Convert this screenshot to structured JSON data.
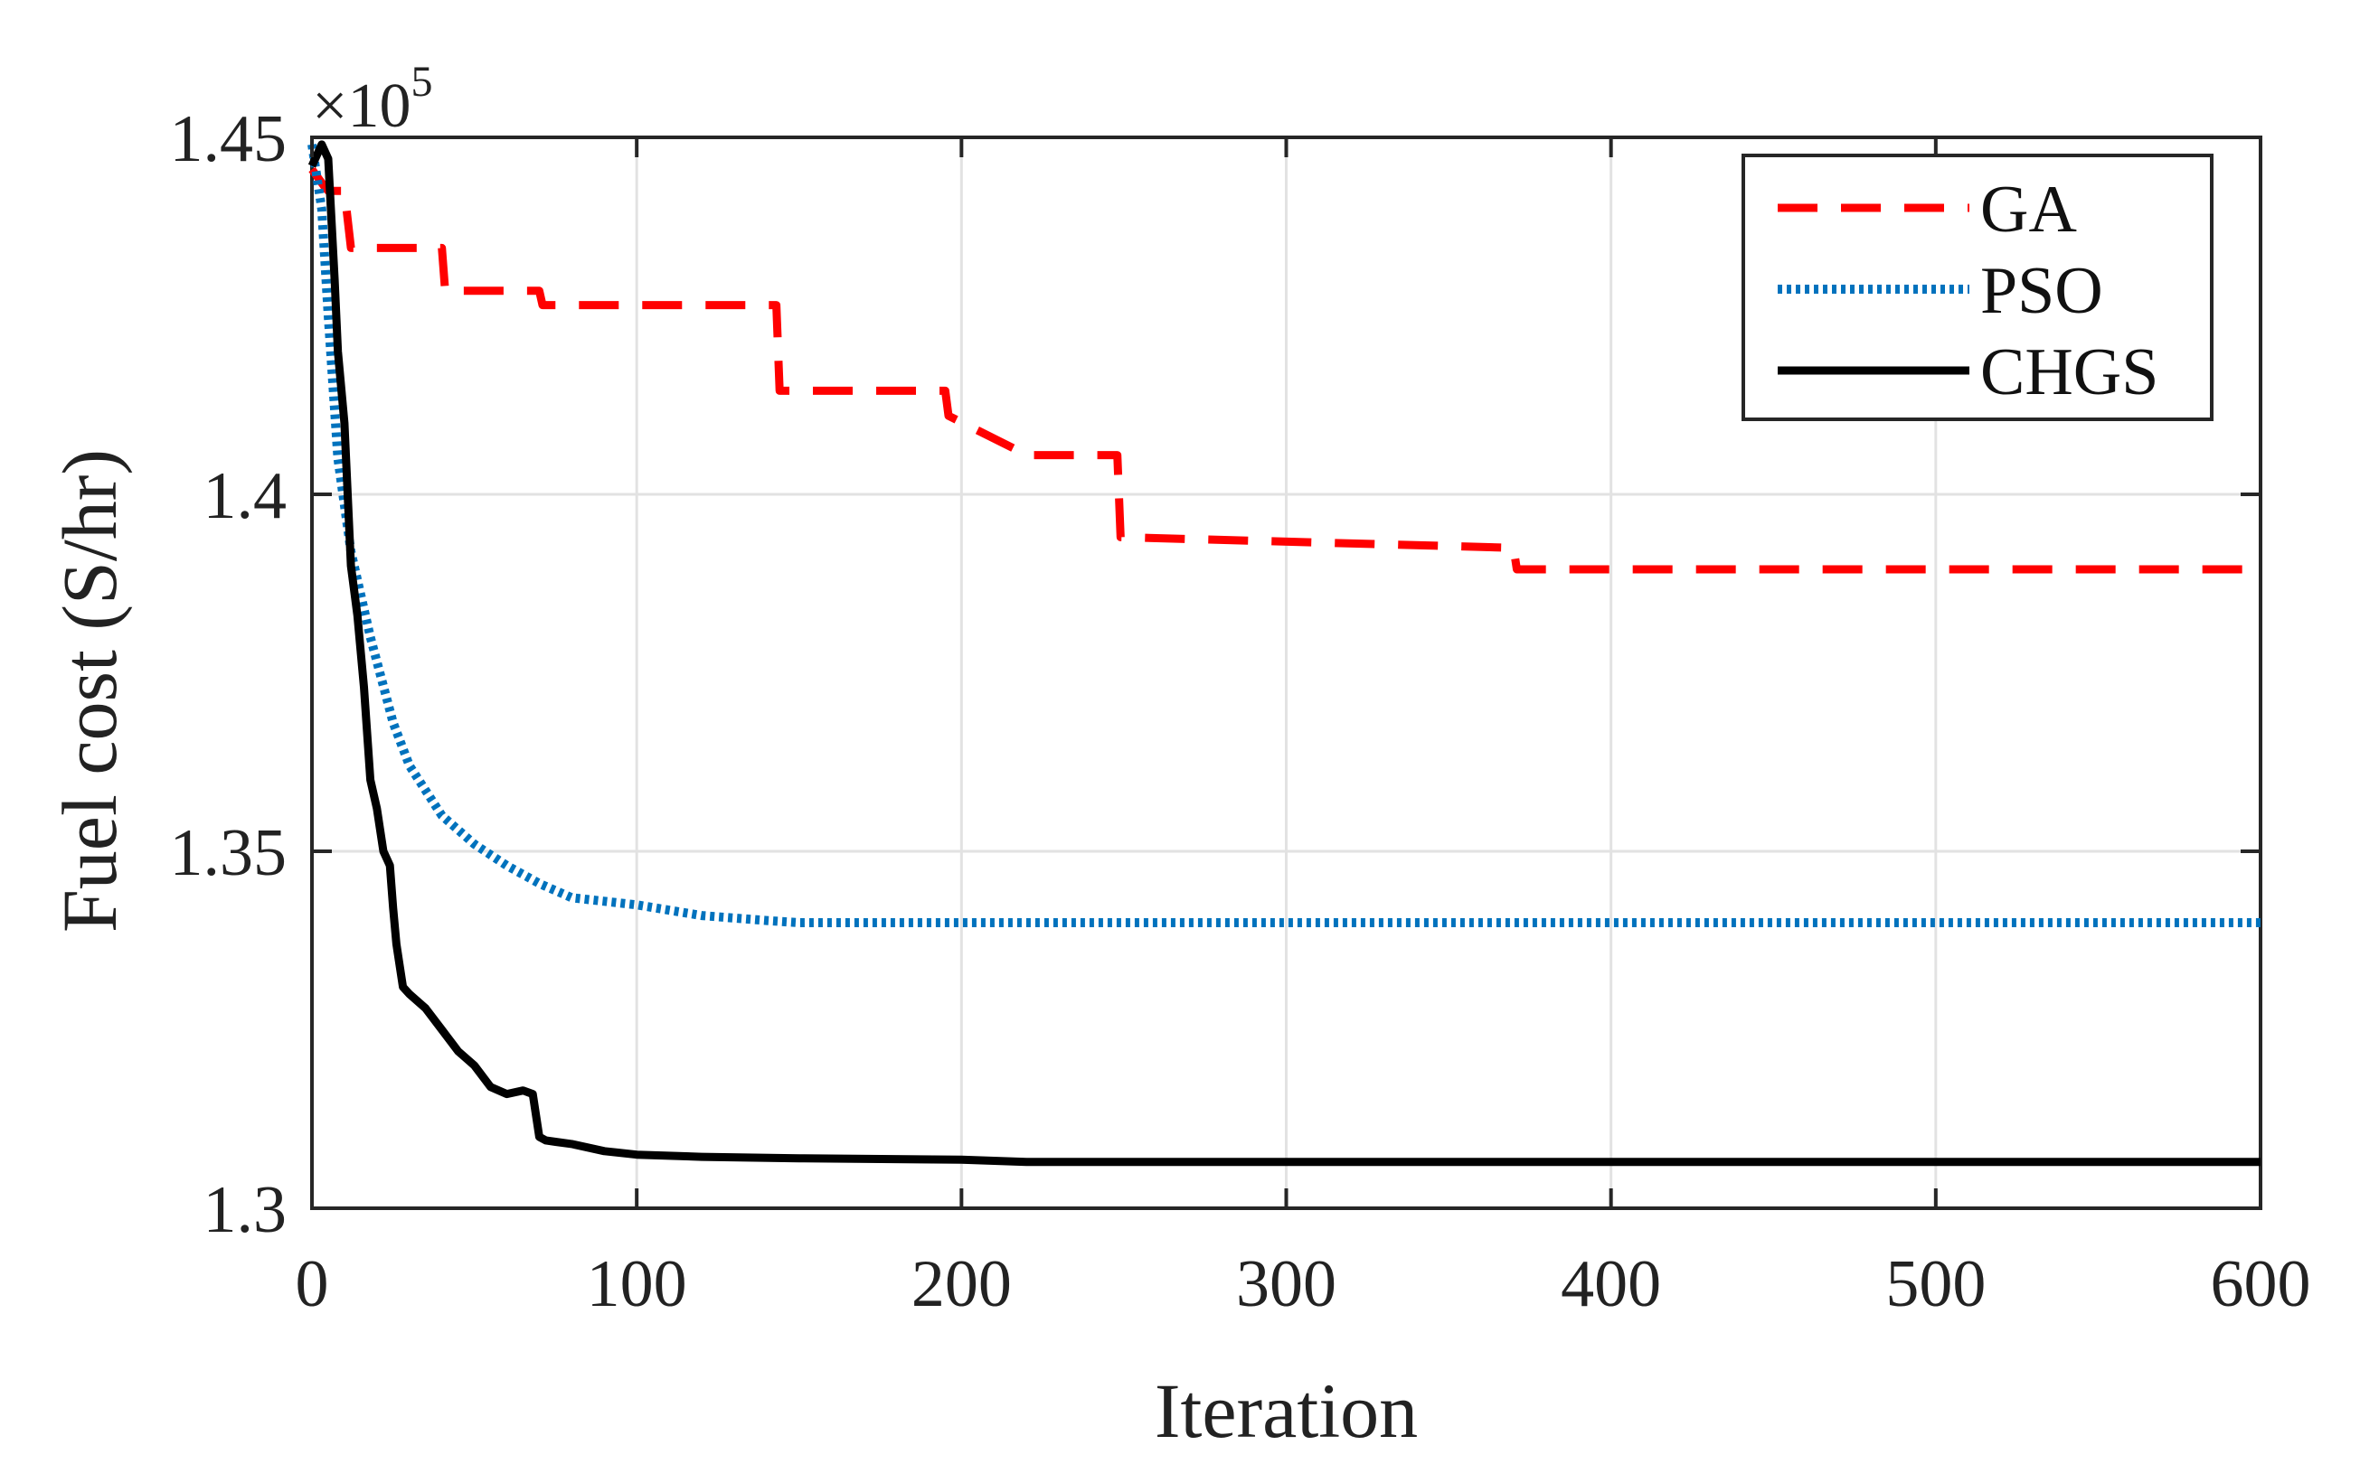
{
  "chart_data": {
    "type": "line",
    "title": "",
    "xlabel": "Iteration",
    "ylabel": "Fuel cost (S/hr)",
    "y_multiplier": {
      "base": "×10",
      "exponent": "5"
    },
    "xlim": [
      0,
      600
    ],
    "ylim": [
      1.3,
      1.45
    ],
    "xticks": [
      0,
      100,
      200,
      300,
      400,
      500,
      600
    ],
    "xtick_labels": [
      "0",
      "100",
      "200",
      "300",
      "400",
      "500",
      "600"
    ],
    "yticks": [
      1.3,
      1.35,
      1.4,
      1.45
    ],
    "ytick_labels": [
      "1.3",
      "1.35",
      "1.4",
      "1.45"
    ],
    "grid": true,
    "legend_position": "top-right",
    "series": [
      {
        "name": "GA",
        "color": "#ff0000",
        "style": "dashed",
        "x": [
          0,
          4,
          5,
          10,
          12,
          40,
          41,
          70,
          71,
          143,
          144,
          195,
          196,
          218,
          219,
          248,
          249,
          370,
          371,
          600
        ],
        "y": [
          1.4455,
          1.443,
          1.4425,
          1.4425,
          1.4345,
          1.4345,
          1.4285,
          1.4285,
          1.4265,
          1.4265,
          1.4145,
          1.4145,
          1.411,
          1.406,
          1.4055,
          1.4055,
          1.394,
          1.3925,
          1.3895,
          1.3895
        ]
      },
      {
        "name": "PSO",
        "color": "#0072bd",
        "style": "dotted",
        "x": [
          0,
          3,
          5,
          8,
          12,
          18,
          25,
          30,
          40,
          50,
          60,
          70,
          80,
          90,
          100,
          120,
          140,
          150,
          200,
          300,
          400,
          500,
          600
        ],
        "y": [
          1.449,
          1.44,
          1.425,
          1.405,
          1.392,
          1.38,
          1.368,
          1.362,
          1.355,
          1.351,
          1.348,
          1.3455,
          1.3435,
          1.343,
          1.3425,
          1.341,
          1.3403,
          1.34,
          1.34,
          1.34,
          1.34,
          1.34,
          1.34
        ]
      },
      {
        "name": "CHGS",
        "color": "#000000",
        "style": "solid",
        "x": [
          0,
          3,
          5,
          7,
          8,
          10,
          12,
          14,
          16,
          18,
          20,
          22,
          24,
          25,
          26,
          27,
          28,
          30,
          35,
          40,
          45,
          50,
          55,
          60,
          65,
          68,
          70,
          72,
          75,
          80,
          90,
          100,
          120,
          150,
          200,
          220,
          300,
          400,
          500,
          600
        ],
        "y": [
          1.446,
          1.449,
          1.447,
          1.43,
          1.42,
          1.41,
          1.39,
          1.383,
          1.373,
          1.36,
          1.356,
          1.35,
          1.348,
          1.342,
          1.337,
          1.334,
          1.331,
          1.33,
          1.328,
          1.325,
          1.322,
          1.32,
          1.317,
          1.316,
          1.3165,
          1.316,
          1.31,
          1.3095,
          1.3093,
          1.309,
          1.308,
          1.3075,
          1.3072,
          1.307,
          1.3068,
          1.3065,
          1.3065,
          1.3065,
          1.3065,
          1.3065
        ]
      }
    ]
  }
}
